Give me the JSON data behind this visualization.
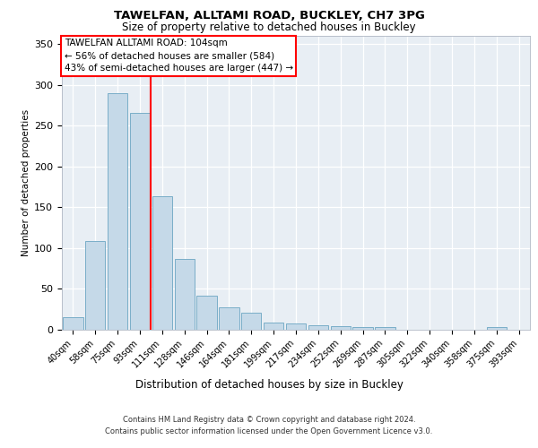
{
  "title1": "TAWELFAN, ALLTAMI ROAD, BUCKLEY, CH7 3PG",
  "title2": "Size of property relative to detached houses in Buckley",
  "xlabel": "Distribution of detached houses by size in Buckley",
  "ylabel": "Number of detached properties",
  "categories": [
    "40sqm",
    "58sqm",
    "75sqm",
    "93sqm",
    "111sqm",
    "128sqm",
    "146sqm",
    "164sqm",
    "181sqm",
    "199sqm",
    "217sqm",
    "234sqm",
    "252sqm",
    "269sqm",
    "287sqm",
    "305sqm",
    "322sqm",
    "340sqm",
    "358sqm",
    "375sqm",
    "393sqm"
  ],
  "values": [
    15,
    108,
    290,
    265,
    163,
    86,
    41,
    27,
    20,
    8,
    7,
    5,
    4,
    3,
    3,
    0,
    0,
    0,
    0,
    3,
    0
  ],
  "bar_color": "#c5d9e8",
  "bar_edgecolor": "#7aaec8",
  "annotation_text_lines": [
    "TAWELFAN ALLTAMI ROAD: 104sqm",
    "← 56% of detached houses are smaller (584)",
    "43% of semi-detached houses are larger (447) →"
  ],
  "vline_color": "red",
  "box_edgecolor": "red",
  "footnote1": "Contains HM Land Registry data © Crown copyright and database right 2024.",
  "footnote2": "Contains public sector information licensed under the Open Government Licence v3.0.",
  "ylim": [
    0,
    360
  ],
  "yticks": [
    0,
    50,
    100,
    150,
    200,
    250,
    300,
    350
  ],
  "background_color": "#e8eef4",
  "vline_x": 3.5
}
